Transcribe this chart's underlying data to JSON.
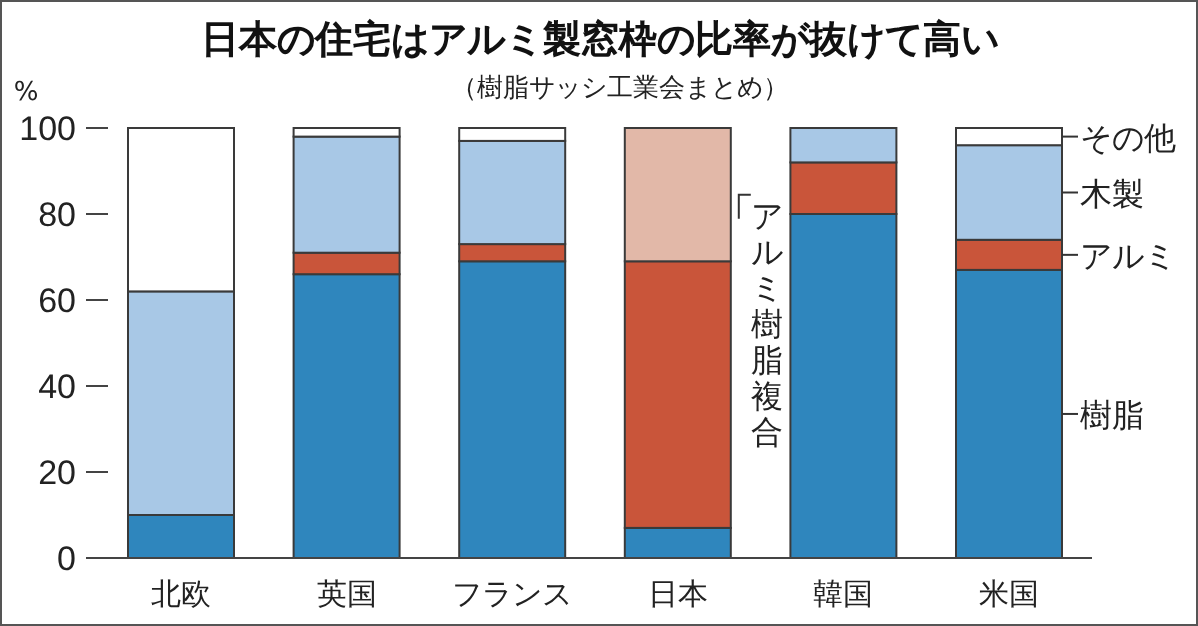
{
  "chart_data": {
    "type": "bar",
    "stacked": true,
    "title": "日本の住宅はアルミ製窓枠の比率が抜けて高い",
    "subtitle": "（樹脂サッシ工業会まとめ）",
    "ylabel": "%",
    "categories": [
      "北欧",
      "英国",
      "フランス",
      "日本",
      "韓国",
      "米国"
    ],
    "ylim": [
      0,
      100
    ],
    "yticks": [
      0,
      20,
      40,
      60,
      80,
      100
    ],
    "grid": false,
    "legend": "right",
    "series": [
      {
        "name": "樹脂",
        "color": "#2f86bd",
        "values": [
          10,
          66,
          69,
          7,
          80,
          67
        ]
      },
      {
        "name": "アルミ",
        "color": "#c9553a",
        "values": [
          0,
          5,
          4,
          62,
          12,
          7
        ]
      },
      {
        "name": "アルミ樹脂複合",
        "color": "#e2b8a8",
        "values": [
          0,
          0,
          0,
          31,
          0,
          0
        ]
      },
      {
        "name": "木製",
        "color": "#a8c8e6",
        "values": [
          52,
          27,
          24,
          0,
          8,
          22
        ]
      },
      {
        "name": "その他",
        "color": "#ffffff",
        "values": [
          38,
          2,
          3,
          0,
          0,
          4
        ]
      }
    ]
  }
}
